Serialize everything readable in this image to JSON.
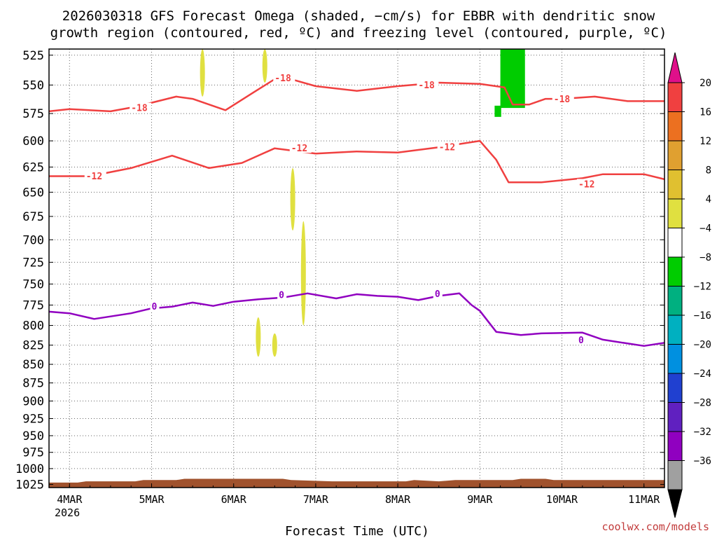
{
  "chart_data": {
    "type": "line",
    "title": "2026030318 GFS Forecast Omega (shaded, −cm/s) for EBBR with dendritic snow growth region (contoured, red, °C) and freezing level (contoured, purple, °C)",
    "title_lines": [
      "2026030318 GFS Forecast Omega (shaded, −cm/s) for EBBR with dendritic snow",
      "growth region (contoured, red, ºC) and freezing level (contoured, purple, ºC)"
    ],
    "xlabel": "Forecast Time (UTC)",
    "ylabel": "",
    "x_ticks": [
      "4MAR",
      "5MAR",
      "6MAR",
      "7MAR",
      "8MAR",
      "9MAR",
      "10MAR",
      "11MAR"
    ],
    "x_tick_year": "2026",
    "x_range_days": [
      3.75,
      11.25
    ],
    "y_ticks": [
      "525",
      "550",
      "575",
      "600",
      "625",
      "650",
      "675",
      "700",
      "725",
      "750",
      "775",
      "800",
      "825",
      "850",
      "875",
      "900",
      "925",
      "950",
      "975",
      "1000",
      "1025"
    ],
    "y_range_hpa": [
      520,
      1030
    ],
    "y_scale": "log-pressure",
    "grid": true,
    "series": [
      {
        "name": "-18",
        "color": "#f04040",
        "label_positions": [
          [
            4.75,
            571
          ],
          [
            6.5,
            545
          ],
          [
            8.25,
            551
          ],
          [
            9.9,
            563
          ]
        ],
        "points": [
          [
            3.75,
            573
          ],
          [
            4.0,
            571
          ],
          [
            4.5,
            573
          ],
          [
            4.8,
            569
          ],
          [
            5.3,
            560
          ],
          [
            5.5,
            562
          ],
          [
            5.9,
            572
          ],
          [
            6.25,
            556
          ],
          [
            6.5,
            545
          ],
          [
            6.75,
            546
          ],
          [
            7.0,
            551
          ],
          [
            7.5,
            555
          ],
          [
            8.0,
            551
          ],
          [
            8.5,
            548
          ],
          [
            9.0,
            549
          ],
          [
            9.3,
            552
          ],
          [
            9.4,
            567
          ],
          [
            9.6,
            567
          ],
          [
            9.8,
            562
          ],
          [
            10.0,
            562
          ],
          [
            10.4,
            560
          ],
          [
            10.8,
            564
          ],
          [
            11.25,
            564
          ]
        ]
      },
      {
        "name": "-12",
        "color": "#f04040",
        "label_positions": [
          [
            4.2,
            635
          ],
          [
            6.7,
            608
          ],
          [
            8.5,
            607
          ],
          [
            10.2,
            643
          ]
        ],
        "points": [
          [
            3.75,
            634
          ],
          [
            4.25,
            634
          ],
          [
            4.75,
            626
          ],
          [
            5.25,
            614
          ],
          [
            5.7,
            626
          ],
          [
            6.1,
            621
          ],
          [
            6.5,
            607
          ],
          [
            7.0,
            612
          ],
          [
            7.5,
            610
          ],
          [
            8.0,
            611
          ],
          [
            8.5,
            606
          ],
          [
            9.0,
            600
          ],
          [
            9.2,
            618
          ],
          [
            9.35,
            640
          ],
          [
            9.75,
            640
          ],
          [
            10.25,
            636
          ],
          [
            10.5,
            632
          ],
          [
            11.0,
            632
          ],
          [
            11.25,
            637
          ]
        ]
      },
      {
        "name": "0",
        "color": "#9000c0",
        "label_positions": [
          [
            5.0,
            778
          ],
          [
            6.55,
            764
          ],
          [
            8.45,
            763
          ],
          [
            10.2,
            820
          ]
        ],
        "points": [
          [
            3.75,
            783
          ],
          [
            4.0,
            785
          ],
          [
            4.3,
            792
          ],
          [
            4.75,
            785
          ],
          [
            5.0,
            779
          ],
          [
            5.25,
            777
          ],
          [
            5.5,
            772
          ],
          [
            5.75,
            776
          ],
          [
            6.0,
            771
          ],
          [
            6.3,
            768
          ],
          [
            6.6,
            766
          ],
          [
            6.9,
            761
          ],
          [
            7.25,
            767
          ],
          [
            7.5,
            762
          ],
          [
            7.75,
            764
          ],
          [
            8.0,
            765
          ],
          [
            8.25,
            769
          ],
          [
            8.5,
            764
          ],
          [
            8.75,
            761
          ],
          [
            8.9,
            775
          ],
          [
            9.0,
            782
          ],
          [
            9.2,
            808
          ],
          [
            9.5,
            812
          ],
          [
            9.75,
            810
          ],
          [
            10.25,
            809
          ],
          [
            10.5,
            818
          ],
          [
            10.75,
            822
          ],
          [
            11.0,
            826
          ],
          [
            11.25,
            822
          ]
        ]
      }
    ],
    "omega_shading": [
      {
        "color": "#e0e040",
        "value": 4,
        "day": 5.62,
        "p_top": 520,
        "p_bottom": 560
      },
      {
        "color": "#e0e040",
        "value": 4,
        "day": 6.38,
        "p_top": 520,
        "p_bottom": 548
      },
      {
        "color": "#e0e040",
        "value": 4,
        "day": 6.72,
        "p_top": 626,
        "p_bottom": 690
      },
      {
        "color": "#e0e040",
        "value": 4,
        "day": 6.85,
        "p_top": 680,
        "p_bottom": 800
      },
      {
        "color": "#e0e040",
        "value": 4,
        "day": 6.3,
        "p_top": 790,
        "p_bottom": 840
      },
      {
        "color": "#e0e040",
        "value": 4,
        "day": 6.5,
        "p_top": 810,
        "p_bottom": 840
      },
      {
        "color": "#00cc00",
        "value": -4,
        "day_start": 9.25,
        "day_end": 9.55,
        "p_top": 520,
        "p_bottom": 570
      },
      {
        "color": "#00cc00",
        "value": -4,
        "day_start": 9.18,
        "day_end": 9.26,
        "p_top": 568,
        "p_bottom": 578
      }
    ],
    "colorbar": {
      "labels": [
        "20",
        "16",
        "12",
        "8",
        "4",
        "−4",
        "−8",
        "−12",
        "−16",
        "−20",
        "−24",
        "−28",
        "−32",
        "−36"
      ],
      "colors": [
        "#f04040",
        "#ec7020",
        "#e0a030",
        "#e0c030",
        "#e0e040",
        "#ffffff",
        "#00cc00",
        "#00b080",
        "#00b0c0",
        "#0090e0",
        "#2040d0",
        "#6020c0",
        "#9000c0",
        "#a0a0a0"
      ],
      "over_color": "#e0108a",
      "under_color": "#000000"
    },
    "terrain_color": "#a0522d"
  },
  "credit": "coolwx.com/models"
}
